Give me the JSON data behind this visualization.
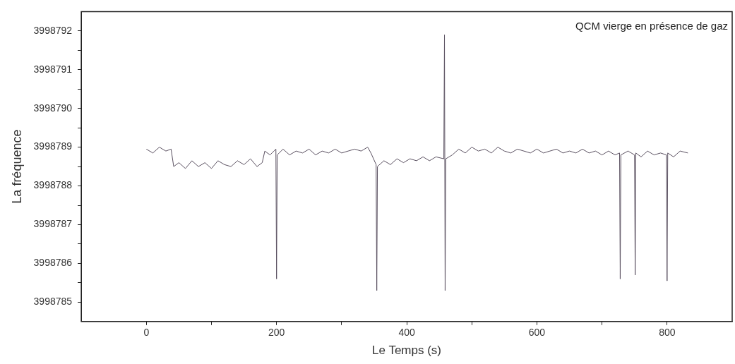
{
  "chart_data": {
    "type": "line",
    "xlabel": "Le Temps (s)",
    "ylabel": "La fréquence",
    "annotations": [
      "QCM vierge en présence de gaz"
    ],
    "xlim": [
      -100,
      900
    ],
    "xticks": [
      0,
      {
        "value": 100,
        "label": null
      },
      200,
      {
        "value": 300,
        "label": null
      },
      400,
      {
        "value": 500,
        "label": null
      },
      600,
      {
        "value": 700,
        "label": null
      },
      800
    ],
    "ylim": [
      3998784.5,
      3998792.5
    ],
    "yticks": [
      3998785,
      {
        "value": 3998785.5,
        "label": null
      },
      3998786,
      {
        "value": 3998786.5,
        "label": null
      },
      3998787,
      {
        "value": 3998787.5,
        "label": null
      },
      3998788,
      {
        "value": 3998788.5,
        "label": null
      },
      3998789,
      {
        "value": 3998789.5,
        "label": null
      },
      3998790,
      {
        "value": 3998790.5,
        "label": null
      },
      3998791,
      {
        "value": 3998791.5,
        "label": null
      },
      3998792
    ],
    "grid": false,
    "legend": false,
    "marker": "none",
    "line_style": "solid",
    "series": [
      {
        "color": "#5a5060",
        "x": [
          0,
          10,
          20,
          30,
          38,
          42,
          50,
          60,
          70,
          80,
          90,
          100,
          110,
          120,
          130,
          140,
          150,
          160,
          170,
          178,
          182,
          190,
          199,
          200,
          201,
          210,
          220,
          230,
          240,
          250,
          260,
          270,
          280,
          290,
          300,
          310,
          320,
          330,
          340,
          345,
          353,
          354,
          355,
          365,
          375,
          385,
          395,
          405,
          415,
          425,
          435,
          445,
          457,
          458,
          459,
          460,
          470,
          480,
          490,
          500,
          510,
          520,
          530,
          540,
          550,
          560,
          570,
          580,
          590,
          600,
          610,
          620,
          630,
          640,
          650,
          660,
          670,
          680,
          690,
          700,
          710,
          720,
          727,
          728,
          729,
          740,
          750,
          751,
          752,
          760,
          770,
          780,
          790,
          799,
          800,
          801,
          810,
          820,
          832
        ],
        "values": [
          3998788.95,
          3998788.85,
          3998789.0,
          3998788.9,
          3998788.95,
          3998788.5,
          3998788.6,
          3998788.45,
          3998788.65,
          3998788.5,
          3998788.6,
          3998788.45,
          3998788.65,
          3998788.55,
          3998788.5,
          3998788.65,
          3998788.55,
          3998788.7,
          3998788.5,
          3998788.6,
          3998788.9,
          3998788.8,
          3998788.95,
          3998785.6,
          3998788.8,
          3998788.95,
          3998788.8,
          3998788.9,
          3998788.85,
          3998788.95,
          3998788.8,
          3998788.9,
          3998788.85,
          3998788.95,
          3998788.85,
          3998788.9,
          3998788.95,
          3998788.9,
          3998789.0,
          3998788.85,
          3998788.55,
          3998785.3,
          3998788.5,
          3998788.65,
          3998788.55,
          3998788.7,
          3998788.6,
          3998788.7,
          3998788.65,
          3998788.75,
          3998788.65,
          3998788.75,
          3998788.7,
          3998791.9,
          3998785.3,
          3998788.7,
          3998788.8,
          3998788.95,
          3998788.85,
          3998789.0,
          3998788.9,
          3998788.95,
          3998788.85,
          3998789.0,
          3998788.9,
          3998788.85,
          3998788.95,
          3998788.9,
          3998788.85,
          3998788.95,
          3998788.85,
          3998788.9,
          3998788.95,
          3998788.85,
          3998788.9,
          3998788.85,
          3998788.95,
          3998788.85,
          3998788.9,
          3998788.8,
          3998788.9,
          3998788.8,
          3998788.85,
          3998785.6,
          3998788.8,
          3998788.9,
          3998788.8,
          3998785.7,
          3998788.85,
          3998788.75,
          3998788.9,
          3998788.8,
          3998788.85,
          3998788.8,
          3998785.55,
          3998788.85,
          3998788.75,
          3998788.9,
          3998788.85
        ]
      }
    ]
  }
}
